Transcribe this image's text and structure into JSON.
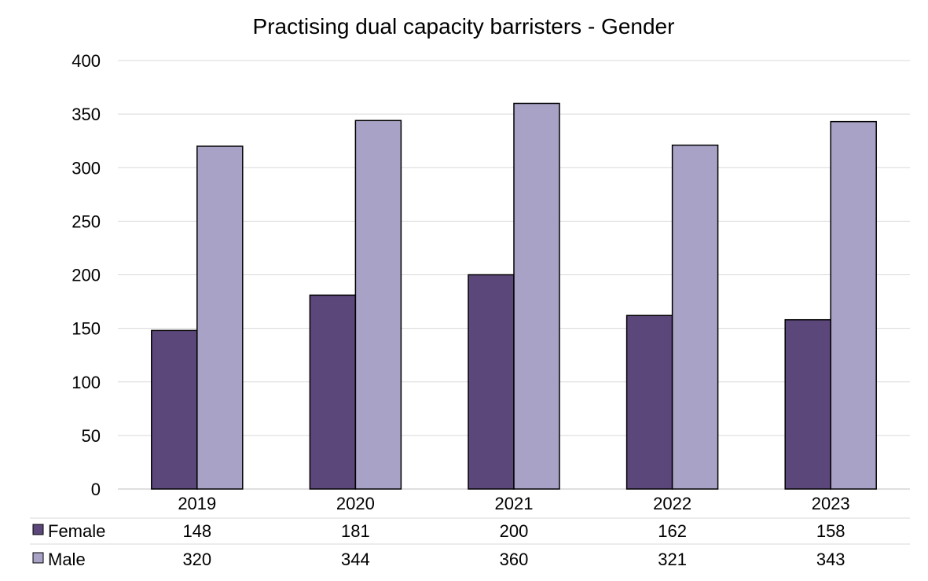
{
  "chart_data": {
    "type": "bar",
    "title": "Practising dual capacity barristers - Gender",
    "categories": [
      "2019",
      "2020",
      "2021",
      "2022",
      "2023"
    ],
    "series": [
      {
        "name": "Female",
        "values": [
          148,
          181,
          200,
          162,
          158
        ],
        "color": "#5c477a"
      },
      {
        "name": "Male",
        "values": [
          320,
          344,
          360,
          321,
          343
        ],
        "color": "#a8a3c6"
      }
    ],
    "ylim": [
      0,
      400
    ],
    "yticks": [
      0,
      50,
      100,
      150,
      200,
      250,
      300,
      350,
      400
    ],
    "grid": true,
    "legend": "data-table",
    "xlabel": "",
    "ylabel": ""
  }
}
